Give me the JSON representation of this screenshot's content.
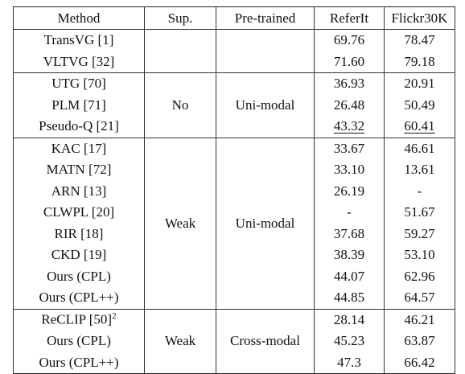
{
  "headers": {
    "method": "Method",
    "sup": "Sup.",
    "pretrained": "Pre-trained",
    "referit": "ReferIt",
    "flickr": "Flickr30K"
  },
  "groups": [
    {
      "sup": "",
      "pretrained": "",
      "rows": [
        {
          "method": "TransVG [1]",
          "referit": "69.76",
          "flickr": "78.47"
        },
        {
          "method": "VLTVG [32]",
          "referit": "71.60",
          "flickr": "79.18"
        }
      ]
    },
    {
      "sup": "No",
      "pretrained": "Uni-modal",
      "rows": [
        {
          "method": "UTG [70]",
          "referit": "36.93",
          "flickr": "20.91"
        },
        {
          "method": "PLM [71]",
          "referit": "26.48",
          "flickr": "50.49"
        },
        {
          "method": "Pseudo-Q [21]",
          "referit": "43.32",
          "flickr": "60.41",
          "underline": true
        }
      ]
    },
    {
      "sup": "Weak",
      "pretrained": "Uni-modal",
      "rows": [
        {
          "method": "KAC [17]",
          "referit": "33.67",
          "flickr": "46.61"
        },
        {
          "method": "MATN [72]",
          "referit": "33.10",
          "flickr": "13.61"
        },
        {
          "method": "ARN [13]",
          "referit": "26.19",
          "flickr": "-"
        },
        {
          "method": "CLWPL [20]",
          "referit": "-",
          "flickr": "51.67"
        },
        {
          "method": "RIR [18]",
          "referit": "37.68",
          "flickr": "59.27"
        },
        {
          "method": "CKD [19]",
          "referit": "38.39",
          "flickr": "53.10"
        },
        {
          "method": "Ours (CPL)",
          "referit": "44.07",
          "flickr": "62.96",
          "bold": true
        },
        {
          "method": "Ours (CPL++)",
          "referit": "44.85",
          "flickr": "64.57",
          "bold": true
        }
      ]
    },
    {
      "sup": "Weak",
      "pretrained": "Cross-modal",
      "rows": [
        {
          "method": "ReCLIP [50]",
          "method_sup": "2",
          "referit": "28.14",
          "flickr": "46.21"
        },
        {
          "method": "Ours (CPL)",
          "referit": "45.23",
          "flickr": "63.87",
          "bold": true
        },
        {
          "method": "Ours (CPL++)",
          "referit": "47.3",
          "flickr": "66.42",
          "bold": true
        }
      ]
    }
  ]
}
